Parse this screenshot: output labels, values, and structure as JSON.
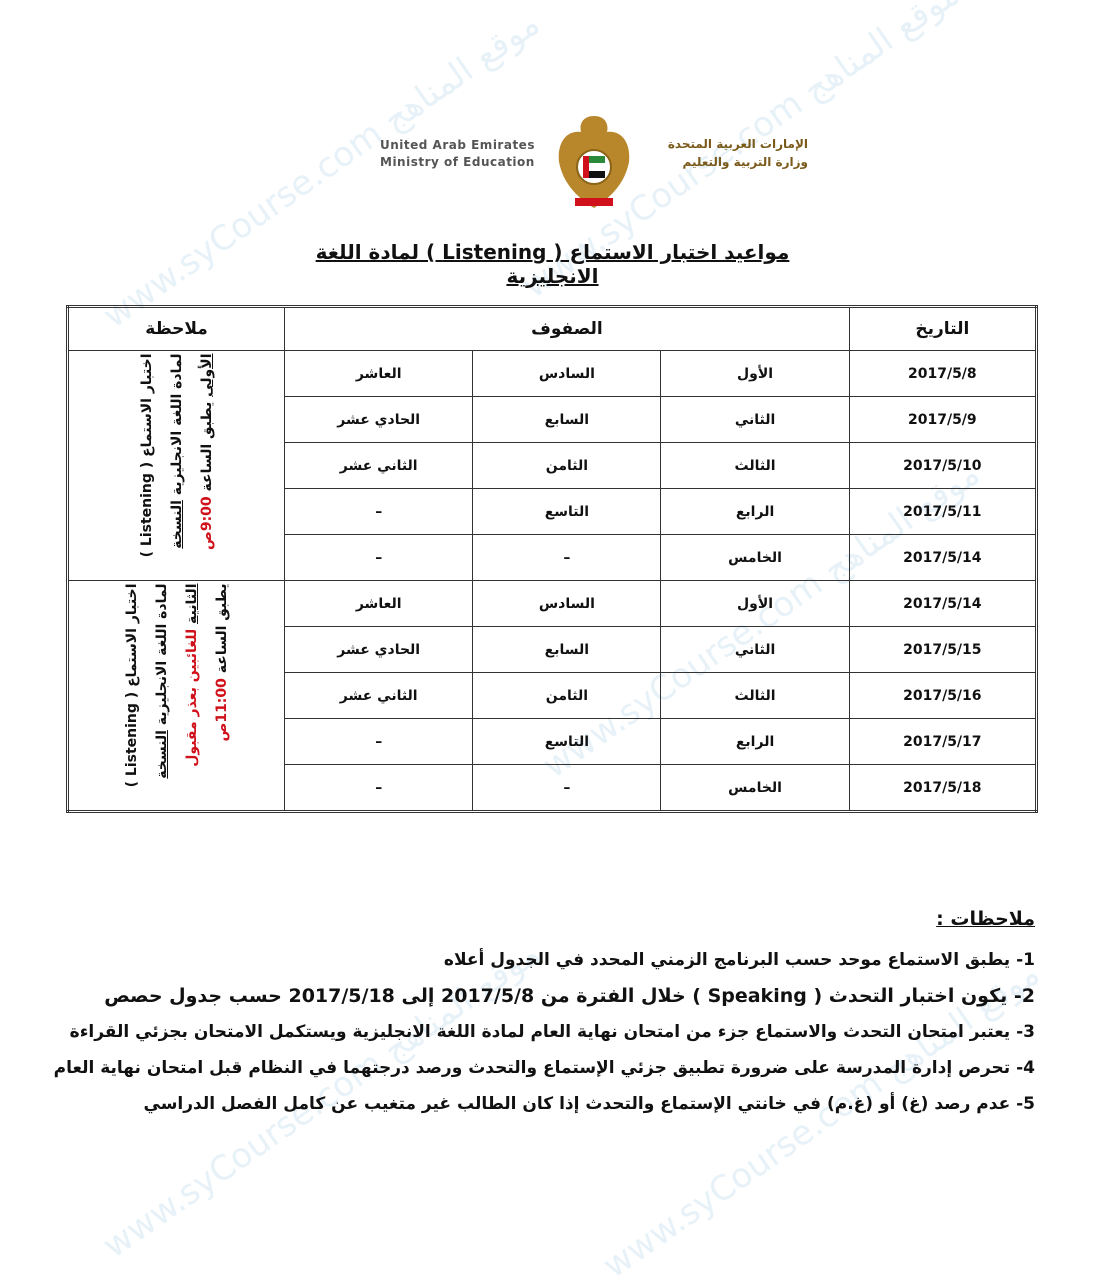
{
  "header": {
    "en_line1": "United Arab Emirates",
    "en_line2": "Ministry of Education",
    "ar_line1": "الإمارات العربية المتحدة",
    "ar_line2": "وزارة التربية والتعليم",
    "logo": "uae-emblem-falcon"
  },
  "title": "مواعيد اختبار الاستماع ( Listening ) لمادة اللغة الانجليزية",
  "table": {
    "headers": {
      "date": "التاريخ",
      "grades": "الصفوف",
      "note": "ملاحظة"
    },
    "rows": [
      {
        "date": "2017/5/8",
        "g1": "الأول",
        "g2": "السادس",
        "g3": "العاشر"
      },
      {
        "date": "2017/5/9",
        "g1": "الثاني",
        "g2": "السابع",
        "g3": "الحادي عشر"
      },
      {
        "date": "2017/5/10",
        "g1": "الثالث",
        "g2": "الثامن",
        "g3": "الثاني عشر"
      },
      {
        "date": "2017/5/11",
        "g1": "الرابع",
        "g2": "التاسع",
        "g3": "–"
      },
      {
        "date": "2017/5/14",
        "g1": "الخامس",
        "g2": "–",
        "g3": "–"
      },
      {
        "date": "2017/5/14",
        "g1": "الأول",
        "g2": "السادس",
        "g3": "العاشر"
      },
      {
        "date": "2017/5/15",
        "g1": "الثاني",
        "g2": "السابع",
        "g3": "الحادي عشر"
      },
      {
        "date": "2017/5/16",
        "g1": "الثالث",
        "g2": "الثامن",
        "g3": "الثاني عشر"
      },
      {
        "date": "2017/5/17",
        "g1": "الرابع",
        "g2": "التاسع",
        "g3": "–"
      },
      {
        "date": "2017/5/18",
        "g1": "الخامس",
        "g2": "–",
        "g3": "–"
      }
    ],
    "note1": {
      "line1": "اختبار الاستماع ( Listening )",
      "line2a": "لمادة اللغة الانجليزية ",
      "line2b": "النسخة",
      "line3a": "الأولى",
      "line3b": " يطبق الساعة ",
      "time": "9:00ص"
    },
    "note2": {
      "line1": "اختبار الاستماع ( Listening )",
      "line2a": "لمادة اللغة الانجليزية ",
      "line2b": "النسخة",
      "line3a": "الثانية",
      "line3b": " للغائبين بعذر مقبول",
      "line4": "يطبق الساعة ",
      "time": "11:00ص"
    }
  },
  "notes": {
    "heading": "ملاحظات :",
    "items": [
      "1- يطبق الاستماع موحد حسب البرنامج الزمني المحدد في الجدول أعلاه",
      "2- يكون اختبار التحدث ( Speaking ) خلال الفترة من 2017/5/8 إلى 2017/5/18 حسب جدول حصص",
      "3- يعتبر امتحان التحدث والاستماع جزء من امتحان نهاية العام لمادة اللغة الانجليزية ويستكمل الامتحان بجزئي القراءة",
      "4- تحرص إدارة المدرسة على ضرورة تطبيق جزئي الإستماع والتحدث ورصد درجتهما في النظام قبل امتحان نهاية العام",
      "5- عدم رصد (غ) أو (غ.م) في خانتي الإستماع والتحدث إذا كان الطالب غير متغيب عن كامل الفصل الدراسي"
    ]
  },
  "watermark": "www.syCourse.com موقع المناهج",
  "colors": {
    "time_red": "#d0101a",
    "logo_gold": "#b8862b"
  }
}
